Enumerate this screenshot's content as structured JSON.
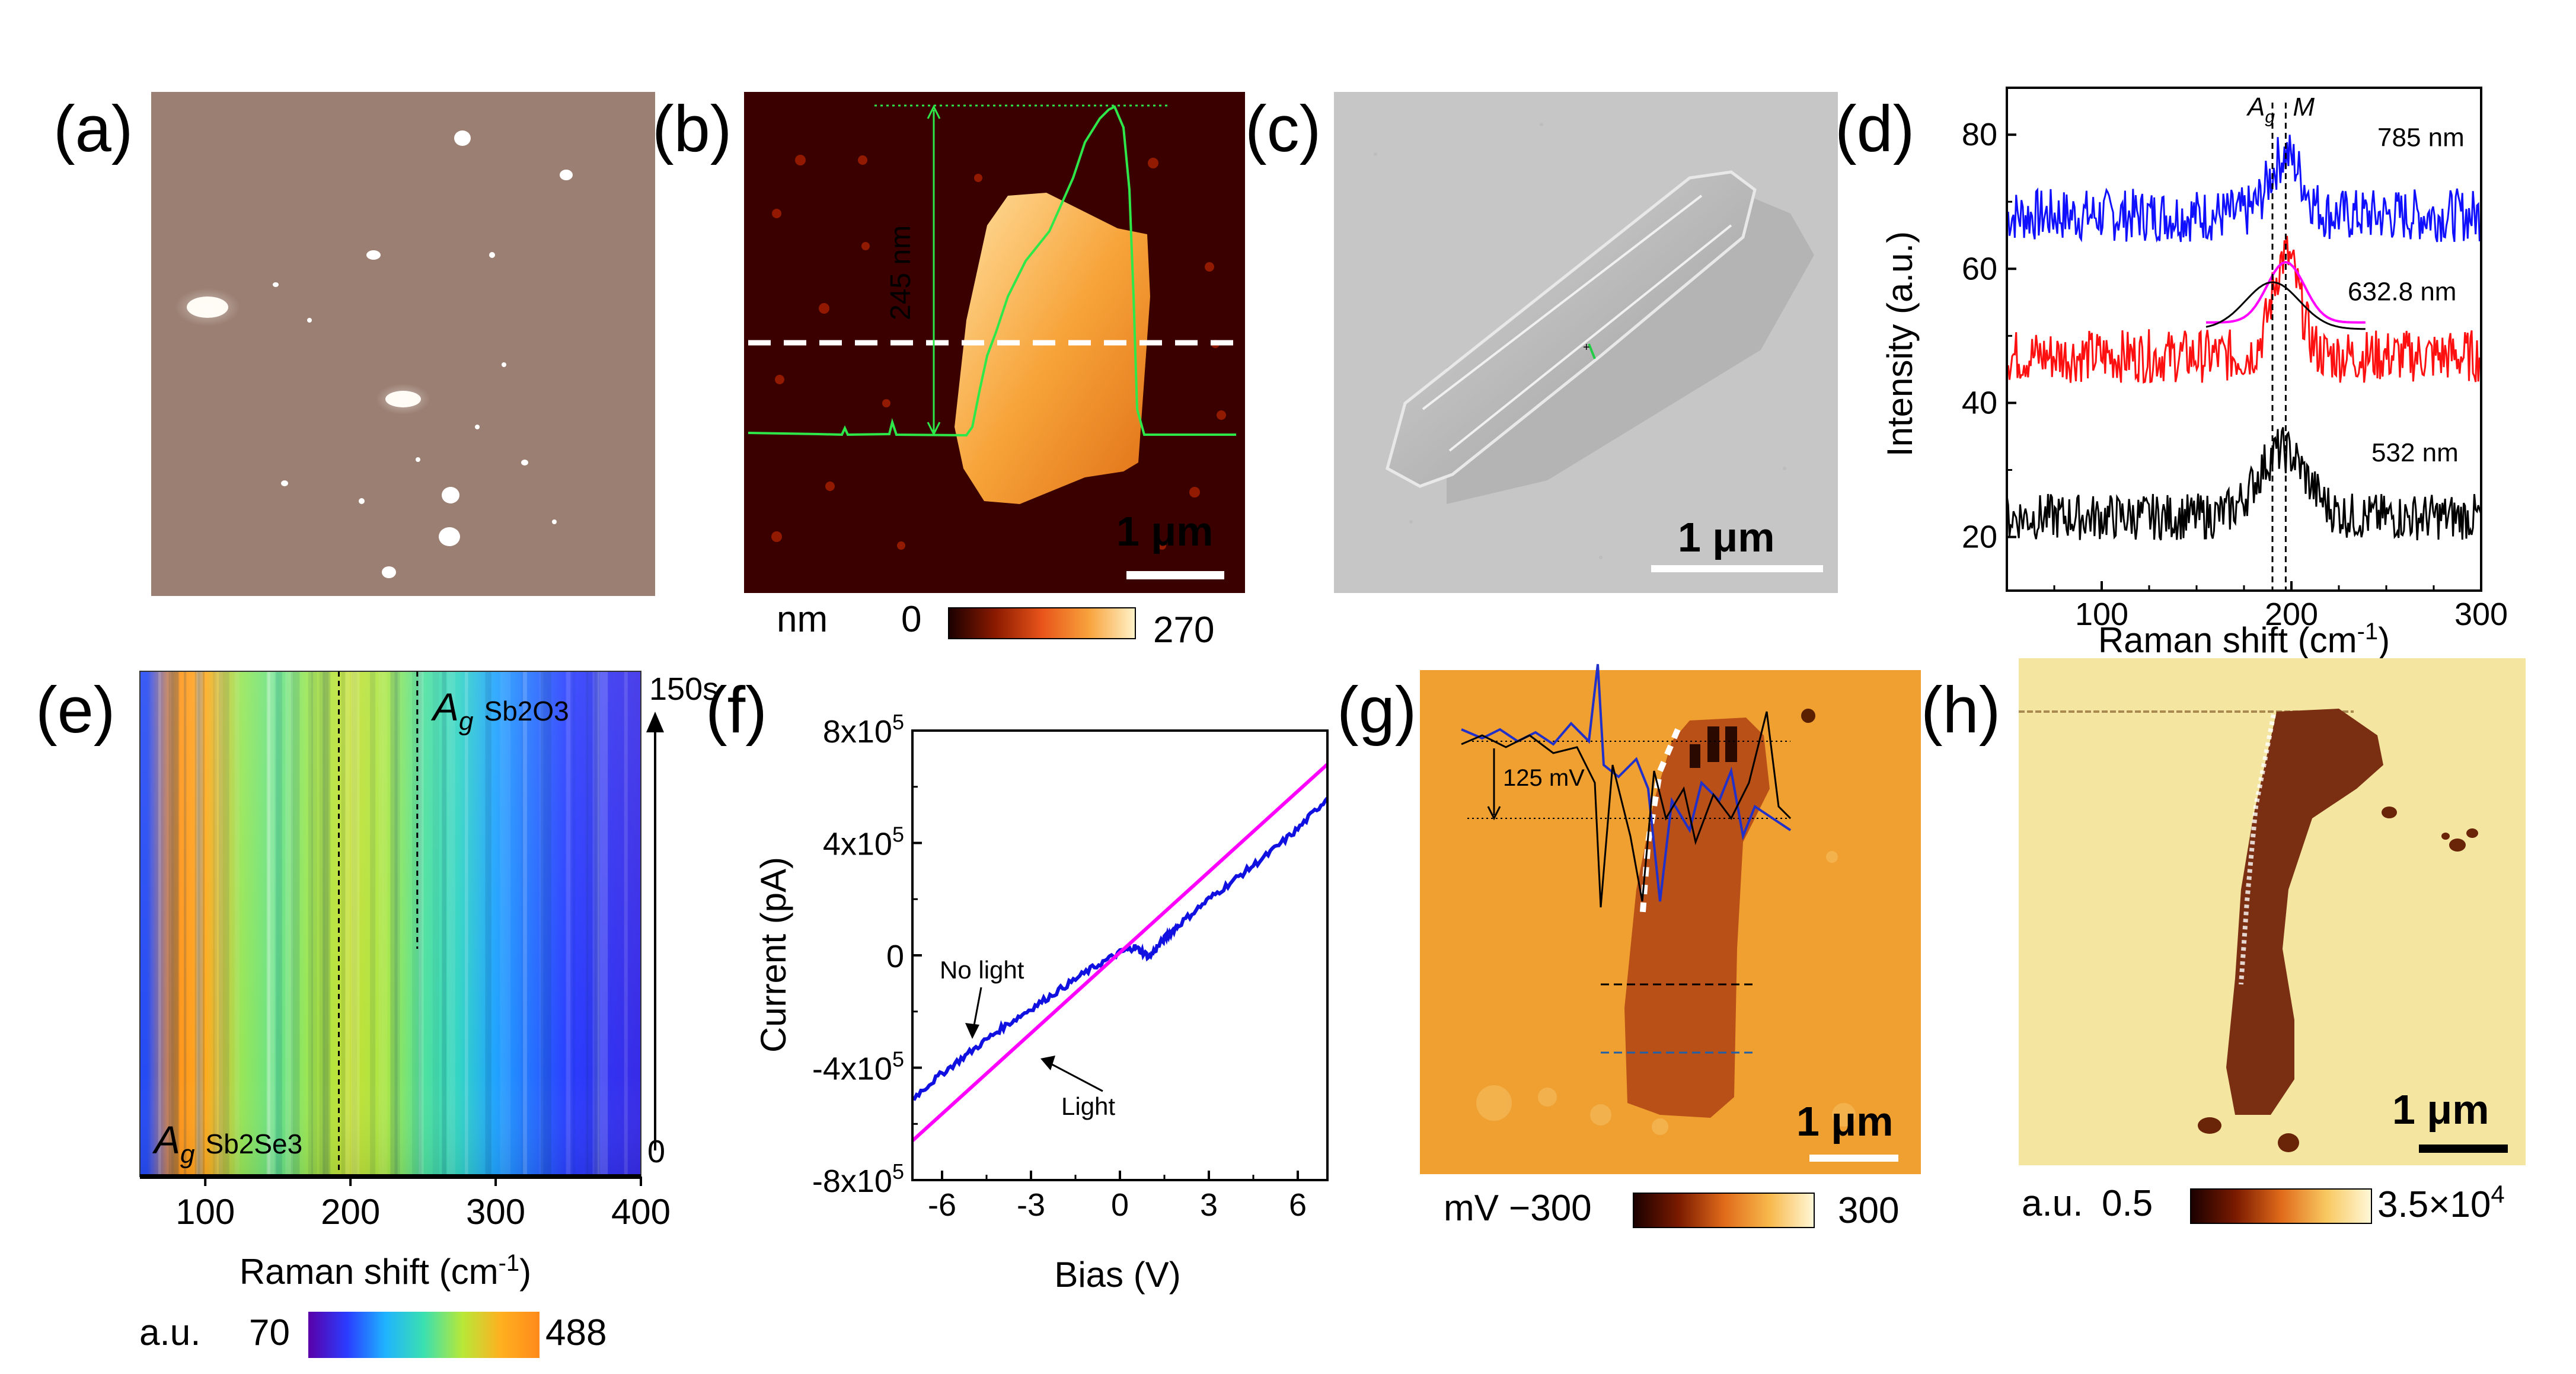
{
  "panels": {
    "a": {
      "label": "(a)"
    },
    "b": {
      "label": "(b)",
      "height_annotation": "245 nm",
      "scale_bar": "1 μm",
      "colorbar": {
        "unit": "nm",
        "min": "0",
        "max": "270",
        "colors": [
          "#1a0000",
          "#8b1a00",
          "#e8541a",
          "#f8a23c",
          "#fff3c8"
        ]
      }
    },
    "c": {
      "label": "(c)",
      "scale_bar": "1 μm"
    },
    "d": {
      "label": "(d)"
    },
    "e": {
      "label": "(e)",
      "time_label": "150s",
      "time_zero": "0",
      "peak1_symbol": "A",
      "peak1_sub": "g",
      "peak1_label": "Sb2O3",
      "peak2_symbol": "A",
      "peak2_sub": "g",
      "peak2_label": "Sb2Se3",
      "colorbar": {
        "unit": "a.u.",
        "min": "70",
        "max": "488",
        "colors": [
          "#5a00a8",
          "#2a3cff",
          "#1fb3ff",
          "#3be0b0",
          "#b8e838",
          "#ffb020",
          "#ff8a1a"
        ]
      }
    },
    "f": {
      "label": "(f)"
    },
    "g": {
      "label": "(g)",
      "potential_annotation": "125 mV",
      "scale_bar": "1 μm",
      "colorbar": {
        "unit": "mV",
        "min": "−300",
        "max": "300",
        "colors": [
          "#1a0000",
          "#7a1a00",
          "#e06a1a",
          "#f8b84a",
          "#fff8d8"
        ]
      }
    },
    "h": {
      "label": "(h)",
      "scale_bar": "1 μm",
      "colorbar": {
        "unit": "a.u.",
        "min": "0.5",
        "max": "3.5×10",
        "max_exp": "4",
        "colors": [
          "#1a0000",
          "#7a1a00",
          "#e06a1a",
          "#f8c860",
          "#fff8d8"
        ]
      }
    }
  },
  "chart_data": [
    {
      "panel": "d",
      "type": "line",
      "xlabel": "Raman shift (cm",
      "xlabel_sup": "-1",
      "xlabel_end": ")",
      "ylabel": "Intensity (a.u.)",
      "xlim": [
        50,
        300
      ],
      "ylim": [
        12,
        87
      ],
      "xticks": [
        100,
        200,
        300
      ],
      "yticks": [
        20,
        40,
        60,
        80
      ],
      "peak_labels": [
        {
          "symbol": "A",
          "sub": "g",
          "x": 190
        },
        {
          "symbol": "M",
          "x": 197
        }
      ],
      "vlines": [
        190,
        197
      ],
      "series": [
        {
          "name": "785 nm",
          "color": "#1010ff",
          "baseline": 68,
          "noise": 4,
          "peak_x": 197,
          "peak_height": 9,
          "peak_width": 12
        },
        {
          "name": "632.8 nm",
          "color": "#ff1010",
          "baseline": 47,
          "noise": 4,
          "peak_x": 197,
          "peak_height": 15,
          "peak_width": 10
        },
        {
          "name": "532 nm",
          "color": "#000000",
          "baseline": 23,
          "noise": 3.5,
          "peak_x": 195,
          "peak_height": 10,
          "peak_width": 18
        }
      ]
    },
    {
      "panel": "e",
      "type": "heatmap",
      "xlabel": "Raman shift (cm",
      "xlabel_sup": "-1",
      "xlabel_end": ")",
      "xlim": [
        55,
        400
      ],
      "xticks": [
        100,
        200,
        300,
        400
      ],
      "vlines": [
        192,
        246
      ],
      "bands": [
        {
          "x": 60,
          "value": 150
        },
        {
          "x": 80,
          "value": 470
        },
        {
          "x": 100,
          "value": 430
        },
        {
          "x": 125,
          "value": 330
        },
        {
          "x": 150,
          "value": 300
        },
        {
          "x": 175,
          "value": 340
        },
        {
          "x": 200,
          "value": 360
        },
        {
          "x": 225,
          "value": 340
        },
        {
          "x": 250,
          "value": 290
        },
        {
          "x": 275,
          "value": 260
        },
        {
          "x": 300,
          "value": 200
        },
        {
          "x": 350,
          "value": 140
        },
        {
          "x": 400,
          "value": 120
        }
      ],
      "vmin": 70,
      "vmax": 488
    },
    {
      "panel": "f",
      "type": "line",
      "xlabel": "Bias (V)",
      "ylabel": "Current (pA)",
      "xlim": [
        -7,
        7
      ],
      "ylim": [
        -800000,
        800000
      ],
      "xticks": [
        -6,
        -3,
        0,
        3,
        6
      ],
      "yticks": [
        {
          "value": 800000,
          "base": "8x10",
          "exp": "5"
        },
        {
          "value": 400000,
          "base": "4x10",
          "exp": "5"
        },
        {
          "value": 0,
          "base": "0",
          "exp": ""
        },
        {
          "value": -400000,
          "base": "-4x10",
          "exp": "5"
        },
        {
          "value": -800000,
          "base": "-8x10",
          "exp": "5"
        }
      ],
      "series": [
        {
          "name": "No light",
          "color": "#1010e0",
          "x": [
            -7,
            -6,
            -5,
            -4,
            -3,
            -2,
            -1,
            0,
            0.5,
            1,
            1.5,
            2,
            3,
            4,
            5,
            6,
            7
          ],
          "y": [
            -510000,
            -420000,
            -340000,
            -260000,
            -190000,
            -120000,
            -50000,
            10000,
            30000,
            -5000,
            60000,
            110000,
            200000,
            280000,
            360000,
            450000,
            560000
          ]
        },
        {
          "name": "Light",
          "color": "#ff00ff",
          "x": [
            -7,
            7
          ],
          "y": [
            -660000,
            680000
          ]
        }
      ],
      "annotations": [
        {
          "text": "No light"
        },
        {
          "text": "Light"
        }
      ]
    }
  ]
}
